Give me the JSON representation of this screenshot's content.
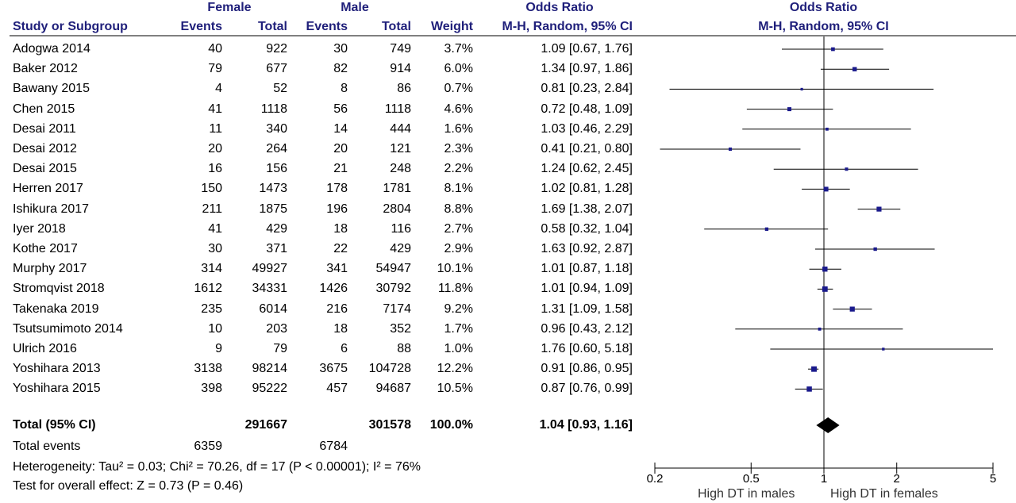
{
  "header": {
    "female_group": "Female",
    "male_group": "Male",
    "or_group_left": "Odds Ratio",
    "or_group_right": "Odds Ratio",
    "col_study": "Study or Subgroup",
    "col_f_events": "Events",
    "col_f_total": "Total",
    "col_m_events": "Events",
    "col_m_total": "Total",
    "col_weight": "Weight",
    "col_or": "M-H, Random, 95% CI",
    "col_plot": "M-H, Random, 95% CI"
  },
  "studies": [
    {
      "name": "Adogwa 2014",
      "f_events": "40",
      "f_total": "922",
      "m_events": "30",
      "m_total": "749",
      "weight": "3.7%",
      "ci_text": "1.09 [0.67, 1.76]"
    },
    {
      "name": "Baker 2012",
      "f_events": "79",
      "f_total": "677",
      "m_events": "82",
      "m_total": "914",
      "weight": "6.0%",
      "ci_text": "1.34 [0.97, 1.86]"
    },
    {
      "name": "Bawany 2015",
      "f_events": "4",
      "f_total": "52",
      "m_events": "8",
      "m_total": "86",
      "weight": "0.7%",
      "ci_text": "0.81 [0.23, 2.84]"
    },
    {
      "name": "Chen 2015",
      "f_events": "41",
      "f_total": "1118",
      "m_events": "56",
      "m_total": "1118",
      "weight": "4.6%",
      "ci_text": "0.72 [0.48, 1.09]"
    },
    {
      "name": "Desai 2011",
      "f_events": "11",
      "f_total": "340",
      "m_events": "14",
      "m_total": "444",
      "weight": "1.6%",
      "ci_text": "1.03 [0.46, 2.29]"
    },
    {
      "name": "Desai 2012",
      "f_events": "20",
      "f_total": "264",
      "m_events": "20",
      "m_total": "121",
      "weight": "2.3%",
      "ci_text": "0.41 [0.21, 0.80]"
    },
    {
      "name": "Desai 2015",
      "f_events": "16",
      "f_total": "156",
      "m_events": "21",
      "m_total": "248",
      "weight": "2.2%",
      "ci_text": "1.24 [0.62, 2.45]"
    },
    {
      "name": "Herren 2017",
      "f_events": "150",
      "f_total": "1473",
      "m_events": "178",
      "m_total": "1781",
      "weight": "8.1%",
      "ci_text": "1.02 [0.81, 1.28]"
    },
    {
      "name": "Ishikura 2017",
      "f_events": "211",
      "f_total": "1875",
      "m_events": "196",
      "m_total": "2804",
      "weight": "8.8%",
      "ci_text": "1.69 [1.38, 2.07]"
    },
    {
      "name": "Iyer 2018",
      "f_events": "41",
      "f_total": "429",
      "m_events": "18",
      "m_total": "116",
      "weight": "2.7%",
      "ci_text": "0.58 [0.32, 1.04]"
    },
    {
      "name": "Kothe 2017",
      "f_events": "30",
      "f_total": "371",
      "m_events": "22",
      "m_total": "429",
      "weight": "2.9%",
      "ci_text": "1.63 [0.92, 2.87]"
    },
    {
      "name": "Murphy 2017",
      "f_events": "314",
      "f_total": "49927",
      "m_events": "341",
      "m_total": "54947",
      "weight": "10.1%",
      "ci_text": "1.01 [0.87, 1.18]"
    },
    {
      "name": "Stromqvist 2018",
      "f_events": "1612",
      "f_total": "34331",
      "m_events": "1426",
      "m_total": "30792",
      "weight": "11.8%",
      "ci_text": "1.01 [0.94, 1.09]"
    },
    {
      "name": "Takenaka 2019",
      "f_events": "235",
      "f_total": "6014",
      "m_events": "216",
      "m_total": "7174",
      "weight": "9.2%",
      "ci_text": "1.31 [1.09, 1.58]"
    },
    {
      "name": "Tsutsumimoto 2014",
      "f_events": "10",
      "f_total": "203",
      "m_events": "18",
      "m_total": "352",
      "weight": "1.7%",
      "ci_text": "0.96 [0.43, 2.12]"
    },
    {
      "name": "Ulrich 2016",
      "f_events": "9",
      "f_total": "79",
      "m_events": "6",
      "m_total": "88",
      "weight": "1.0%",
      "ci_text": "1.76 [0.60, 5.18]"
    },
    {
      "name": "Yoshihara 2013",
      "f_events": "3138",
      "f_total": "98214",
      "m_events": "3675",
      "m_total": "104728",
      "weight": "12.2%",
      "ci_text": "0.91 [0.86, 0.95]"
    },
    {
      "name": "Yoshihara 2015",
      "f_events": "398",
      "f_total": "95222",
      "m_events": "457",
      "m_total": "94687",
      "weight": "10.5%",
      "ci_text": "0.87 [0.76, 0.99]"
    }
  ],
  "total": {
    "label": "Total (95% CI)",
    "f_total": "291667",
    "m_total": "301578",
    "weight": "100.0%",
    "ci_text": "1.04 [0.93, 1.16]"
  },
  "total_events": {
    "label": "Total events",
    "female": "6359",
    "male": "6784"
  },
  "heterogeneity": "Heterogeneity: Tau² = 0.03; Chi² = 70.26, df = 17 (P < 0.00001); I² = 76%",
  "overall_effect": "Test for overall effect: Z = 0.73 (P = 0.46)",
  "axis": {
    "ticks": [
      {
        "value": 0.2,
        "label": "0.2"
      },
      {
        "value": 0.5,
        "label": "0.5"
      },
      {
        "value": 1,
        "label": "1"
      },
      {
        "value": 2,
        "label": "2"
      },
      {
        "value": 5,
        "label": "5"
      }
    ],
    "favours_left": "High DT in males",
    "favours_right": "High DT in females"
  },
  "colors": {
    "header_text": "#1f1f7a",
    "marker": "#1a1a8c",
    "line": "#000000",
    "diamond": "#000000"
  },
  "chart_data": {
    "type": "forest",
    "scale": "log",
    "xlim": [
      0.2,
      5
    ],
    "reference_line": 1,
    "series": [
      {
        "study": "Adogwa 2014",
        "or": 1.09,
        "lo": 0.67,
        "hi": 1.76,
        "weight": 3.7
      },
      {
        "study": "Baker 2012",
        "or": 1.34,
        "lo": 0.97,
        "hi": 1.86,
        "weight": 6.0
      },
      {
        "study": "Bawany 2015",
        "or": 0.81,
        "lo": 0.23,
        "hi": 2.84,
        "weight": 0.7
      },
      {
        "study": "Chen 2015",
        "or": 0.72,
        "lo": 0.48,
        "hi": 1.09,
        "weight": 4.6
      },
      {
        "study": "Desai 2011",
        "or": 1.03,
        "lo": 0.46,
        "hi": 2.29,
        "weight": 1.6
      },
      {
        "study": "Desai 2012",
        "or": 0.41,
        "lo": 0.21,
        "hi": 0.8,
        "weight": 2.3
      },
      {
        "study": "Desai 2015",
        "or": 1.24,
        "lo": 0.62,
        "hi": 2.45,
        "weight": 2.2
      },
      {
        "study": "Herren 2017",
        "or": 1.02,
        "lo": 0.81,
        "hi": 1.28,
        "weight": 8.1
      },
      {
        "study": "Ishikura 2017",
        "or": 1.69,
        "lo": 1.38,
        "hi": 2.07,
        "weight": 8.8
      },
      {
        "study": "Iyer 2018",
        "or": 0.58,
        "lo": 0.32,
        "hi": 1.04,
        "weight": 2.7
      },
      {
        "study": "Kothe 2017",
        "or": 1.63,
        "lo": 0.92,
        "hi": 2.87,
        "weight": 2.9
      },
      {
        "study": "Murphy 2017",
        "or": 1.01,
        "lo": 0.87,
        "hi": 1.18,
        "weight": 10.1
      },
      {
        "study": "Stromqvist 2018",
        "or": 1.01,
        "lo": 0.94,
        "hi": 1.09,
        "weight": 11.8
      },
      {
        "study": "Takenaka 2019",
        "or": 1.31,
        "lo": 1.09,
        "hi": 1.58,
        "weight": 9.2
      },
      {
        "study": "Tsutsumimoto 2014",
        "or": 0.96,
        "lo": 0.43,
        "hi": 2.12,
        "weight": 1.7
      },
      {
        "study": "Ulrich 2016",
        "or": 1.76,
        "lo": 0.6,
        "hi": 5.18,
        "weight": 1.0
      },
      {
        "study": "Yoshihara 2013",
        "or": 0.91,
        "lo": 0.86,
        "hi": 0.95,
        "weight": 12.2
      },
      {
        "study": "Yoshihara 2015",
        "or": 0.87,
        "lo": 0.76,
        "hi": 0.99,
        "weight": 10.5
      }
    ],
    "pooled": {
      "or": 1.04,
      "lo": 0.93,
      "hi": 1.16
    }
  }
}
